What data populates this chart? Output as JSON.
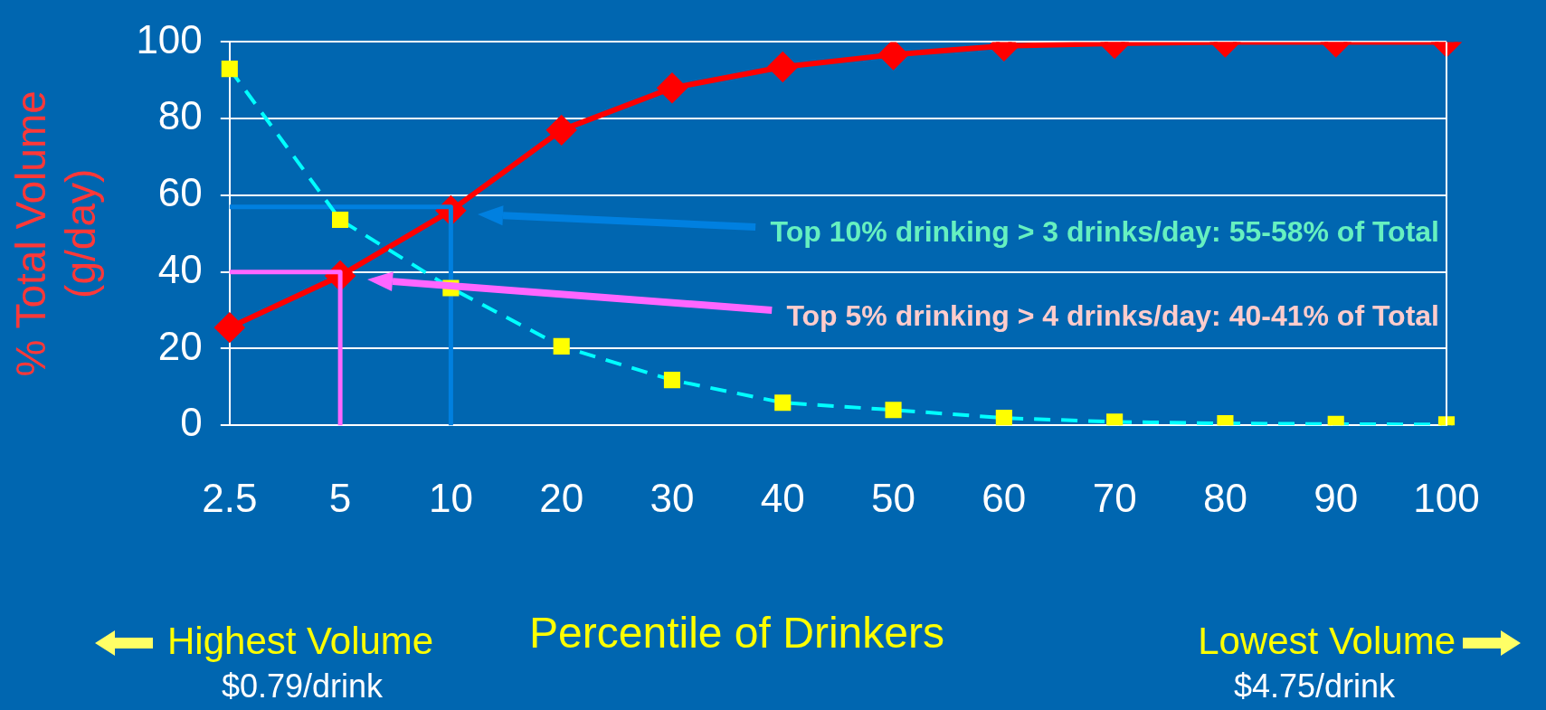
{
  "chart_data": {
    "type": "line",
    "xlabel": "Percentile of Drinkers",
    "ylabel": "% Total Volume (g/day)",
    "categories": [
      "2.5",
      "5",
      "10",
      "20",
      "30",
      "40",
      "50",
      "60",
      "70",
      "80",
      "90",
      "100"
    ],
    "ylim": [
      0,
      100
    ],
    "yticks": [
      0,
      20,
      40,
      60,
      80,
      100
    ],
    "grid": "y",
    "legend": false,
    "series": [
      {
        "color": "#ff0000",
        "marker": "diamond",
        "line_style": "solid",
        "values": [
          25.5,
          39,
          56,
          77,
          88,
          93.5,
          96.7,
          99,
          99.6,
          100,
          100,
          100
        ]
      },
      {
        "color": "#00ffff",
        "colors": [
          "#ffff00",
          "#ffff00",
          "#ffff00",
          "#ffff00",
          "#ffff00",
          "#ffff00",
          "#ffff00",
          "#ffff00",
          "#ffff00",
          "#ffff00",
          "#ffff00",
          "#ffff00"
        ],
        "marker": "square",
        "line_style": "dashed",
        "values": [
          93,
          53.6,
          35.8,
          20.6,
          11.8,
          5.9,
          4,
          1.9,
          0.9,
          0.5,
          0.3,
          0.2
        ]
      },
      {
        "color": "#0080e0",
        "marker": "none",
        "line_style": "solid",
        "x": [
          "2.5",
          "10",
          "10"
        ],
        "values": [
          57,
          57,
          0
        ]
      },
      {
        "color": "#ff66ff",
        "marker": "none",
        "line_style": "solid",
        "x": [
          "2.5",
          "5",
          "5"
        ],
        "values": [
          40,
          40,
          0
        ]
      }
    ],
    "annotations": [
      "Top 10% drinking > 3 drinks/day: 55-58% of Total",
      "Top 5% drinking > 4 drinks/day: 40-41% of Total",
      "Highest Volume",
      "$0.79/drink",
      "Lowest Volume",
      "$4.75/drink"
    ]
  }
}
